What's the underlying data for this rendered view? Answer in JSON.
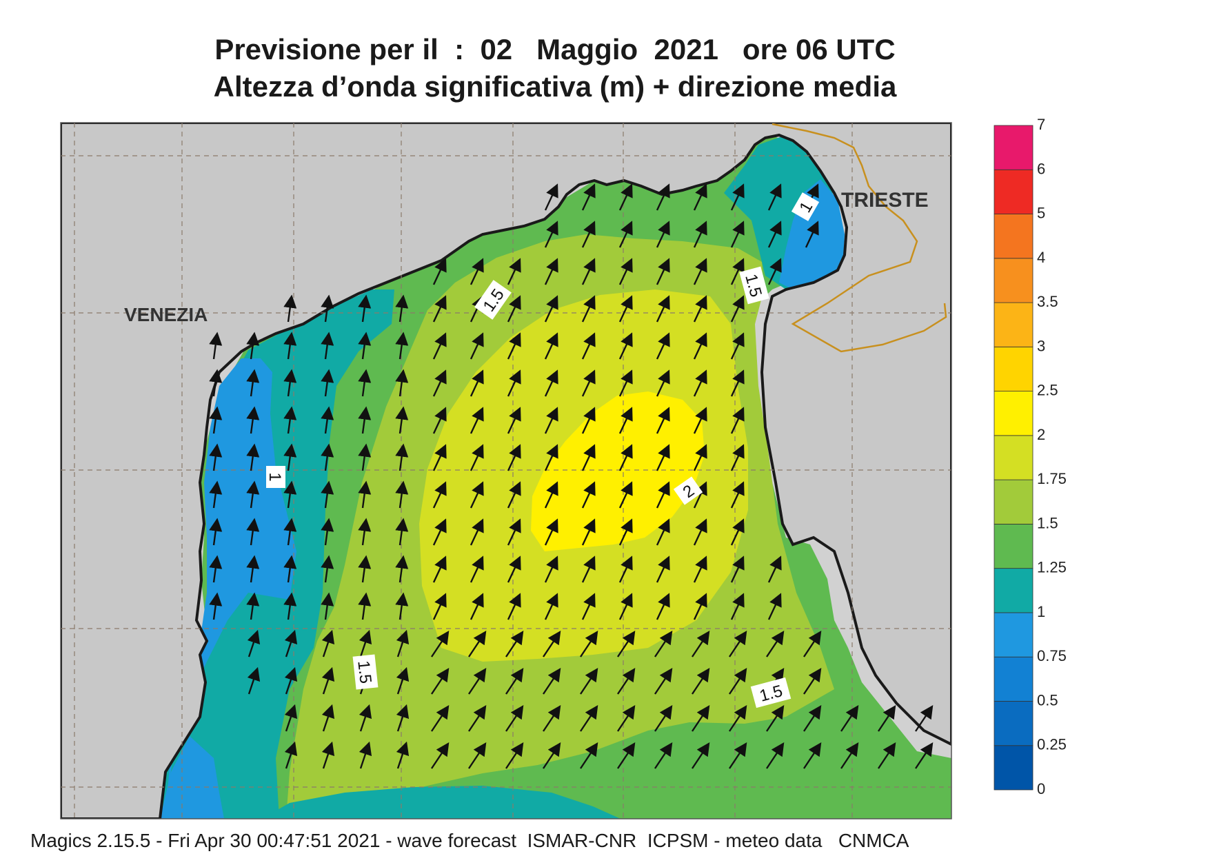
{
  "title": {
    "line1": "Previsione per il  :  02   Maggio  2021   ore 06 UTC",
    "line2": "Altezza d’onda significativa (m) + direzione media"
  },
  "labels": {
    "venezia": "VENEZIA",
    "trieste": "TRIESTE",
    "contour_a": "1.5",
    "contour_b": "1.5",
    "contour_c": "1.5",
    "contour_d": "1.5",
    "contour_e": "1",
    "contour_f": "1",
    "contour_g": "2"
  },
  "legend": {
    "ticks": [
      "0",
      "0.25",
      "0.5",
      "0.75",
      "1",
      "1.25",
      "1.5",
      "1.75",
      "2",
      "2.5",
      "3",
      "3.5",
      "4",
      "5",
      "6",
      "7"
    ],
    "colors": [
      "#0055a8",
      "#0a6cc0",
      "#1281d3",
      "#1f98e0",
      "#11aaa5",
      "#5fba50",
      "#a2cb3a",
      "#d4df23",
      "#fff000",
      "#ffd400",
      "#fcb416",
      "#f7901e",
      "#f4751f",
      "#ee2a24",
      "#e8196b"
    ]
  },
  "footer": "Magics 2.15.5 - Fri Apr 30 00:47:51 2021 - wave forecast  ISMAR-CNR  ICPSM - meteo data   CNMCA"
}
